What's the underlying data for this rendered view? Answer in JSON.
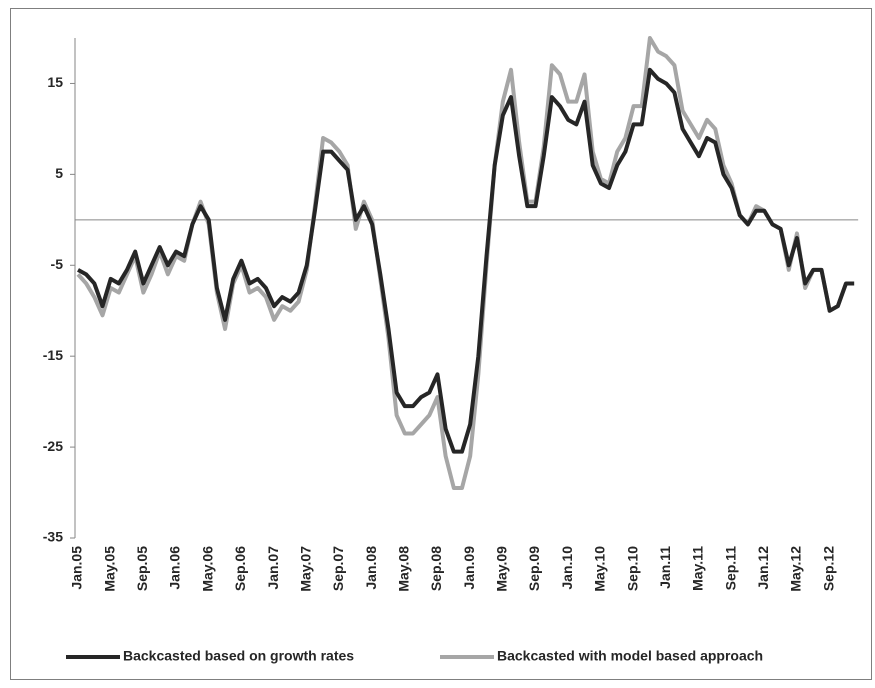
{
  "chart_data": {
    "type": "line",
    "categories": [
      "Jan.05",
      null,
      null,
      null,
      "May.05",
      null,
      null,
      null,
      "Sep.05",
      null,
      null,
      null,
      "Jan.06",
      null,
      null,
      null,
      "May.06",
      null,
      null,
      null,
      "Sep.06",
      null,
      null,
      null,
      "Jan.07",
      null,
      null,
      null,
      "May.07",
      null,
      null,
      null,
      "Sep.07",
      null,
      null,
      null,
      "Jan.08",
      null,
      null,
      null,
      "May.08",
      null,
      null,
      null,
      "Sep.08",
      null,
      null,
      null,
      "Jan.09",
      null,
      null,
      null,
      "May.09",
      null,
      null,
      null,
      "Sep.09",
      null,
      null,
      null,
      "Jan.10",
      null,
      null,
      null,
      "May.10",
      null,
      null,
      null,
      "Sep.10",
      null,
      null,
      null,
      "Jan.11",
      null,
      null,
      null,
      "May.11",
      null,
      null,
      null,
      "Sep.11",
      null,
      null,
      null,
      "Jan.12",
      null,
      null,
      null,
      "May.12",
      null,
      null,
      null,
      "Sep.12",
      null,
      null,
      null
    ],
    "series": [
      {
        "name": "Backcasted based on growth rates",
        "color": "#262626",
        "values": [
          -5.5,
          -6,
          -7,
          -9.5,
          -6.5,
          -7,
          -5.5,
          -3.5,
          -7,
          -5,
          -3,
          -5,
          -3.5,
          -4,
          -0.5,
          1.5,
          0,
          -7.5,
          -11,
          -6.5,
          -4.5,
          -7,
          -6.5,
          -7.5,
          -9.5,
          -8.5,
          -9,
          -8,
          -5,
          1,
          7.5,
          7.5,
          6.5,
          5.5,
          0,
          1.5,
          -0.5,
          -6,
          -12,
          -19,
          -20.5,
          -20.5,
          -19.5,
          -19,
          -17,
          -23,
          -25.5,
          -25.5,
          -22.5,
          -15,
          -4,
          6,
          11.5,
          13.5,
          7,
          1.5,
          1.5,
          7,
          13.5,
          12.5,
          11,
          10.5,
          13,
          6,
          4,
          3.5,
          6,
          7.5,
          10.5,
          10.5,
          16.5,
          15.5,
          15,
          14,
          10,
          8.5,
          7,
          9,
          8.5,
          5,
          3.5,
          0.5,
          -0.5,
          1,
          1,
          -0.5,
          -1,
          -5,
          -2,
          -7,
          -5.5,
          -5.5,
          -10,
          -9.5,
          -7,
          -7
        ]
      },
      {
        "name": "Backcasted with model based approach",
        "color": "#a6a6a6",
        "values": [
          -6,
          -7,
          -8.5,
          -10.5,
          -7.5,
          -8,
          -6,
          -4,
          -8,
          -6,
          -3.5,
          -6,
          -4,
          -4.5,
          -0.5,
          2,
          -0.5,
          -8,
          -12,
          -7,
          -5,
          -8,
          -7.5,
          -8.5,
          -11,
          -9.5,
          -10,
          -9,
          -5.5,
          1.5,
          9,
          8.5,
          7.5,
          6,
          -1,
          2,
          0,
          -6.5,
          -13,
          -21.5,
          -23.5,
          -23.5,
          -22.5,
          -21.5,
          -19.5,
          -26,
          -29.5,
          -29.5,
          -26,
          -17,
          -5,
          6,
          13,
          16.5,
          8.5,
          2,
          2,
          8,
          17,
          16,
          13,
          13,
          16,
          7.5,
          4.5,
          4,
          7.5,
          9,
          12.5,
          12.5,
          20,
          18.5,
          18,
          17,
          12,
          10.5,
          9,
          11,
          10,
          6,
          4,
          0.5,
          -0.5,
          1.5,
          1,
          -0.5,
          -1,
          -5.5,
          -1.5,
          -7.5,
          -5.5,
          -5.5,
          -10,
          -9.5,
          -7,
          -7
        ]
      }
    ],
    "ylim": [
      -35,
      20
    ],
    "yticks": [
      -35,
      -25,
      -15,
      -5,
      5,
      15
    ],
    "grid": false,
    "legend": "bottom"
  }
}
